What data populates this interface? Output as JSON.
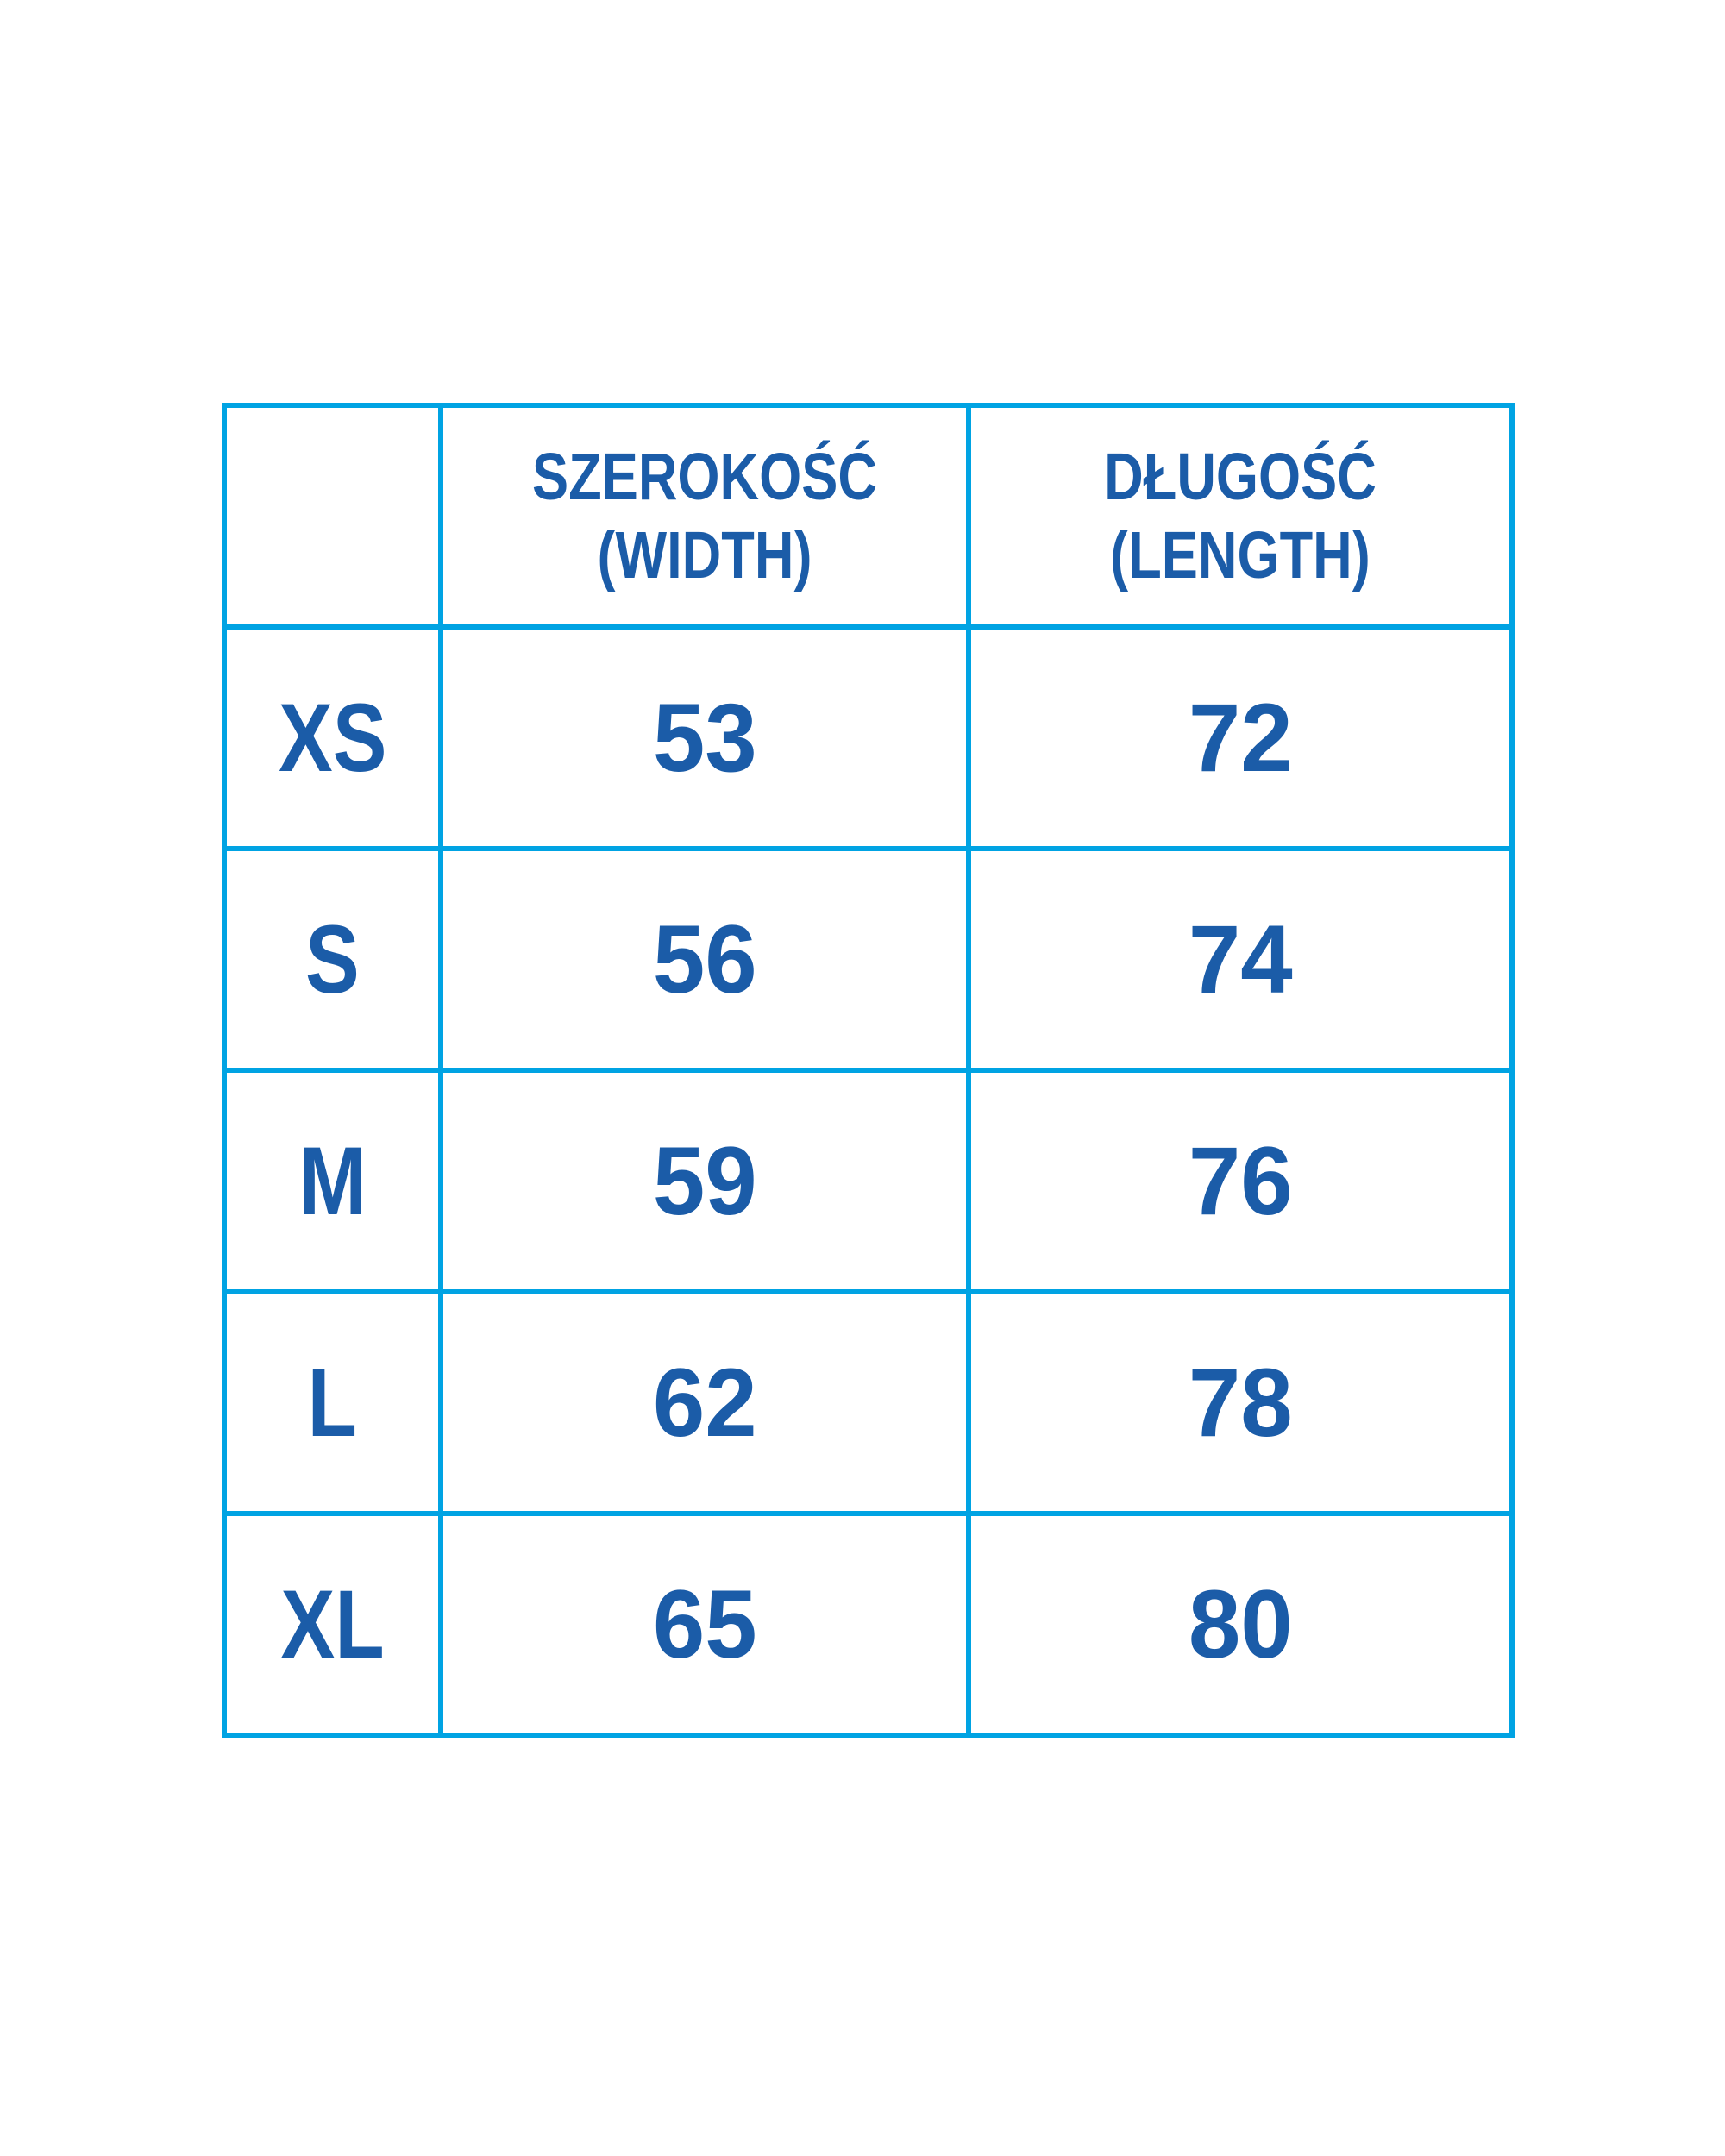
{
  "colors": {
    "border": "#00A3E3",
    "text": "#1B5CA8",
    "background": "#FFFFFF"
  },
  "chart_data": {
    "type": "table",
    "columns": [
      "",
      "SZEROKOŚĆ (WIDTH)",
      "DŁUGOŚĆ (LENGTH)"
    ],
    "rows": [
      [
        "XS",
        53,
        72
      ],
      [
        "S",
        56,
        74
      ],
      [
        "M",
        59,
        76
      ],
      [
        "L",
        62,
        78
      ],
      [
        "XL",
        65,
        80
      ]
    ]
  },
  "table": {
    "header": {
      "width_label": [
        "SZEROKOŚĆ",
        "(WIDTH)"
      ],
      "length_label": [
        "DŁUGOŚĆ",
        "(LENGTH)"
      ]
    }
  }
}
